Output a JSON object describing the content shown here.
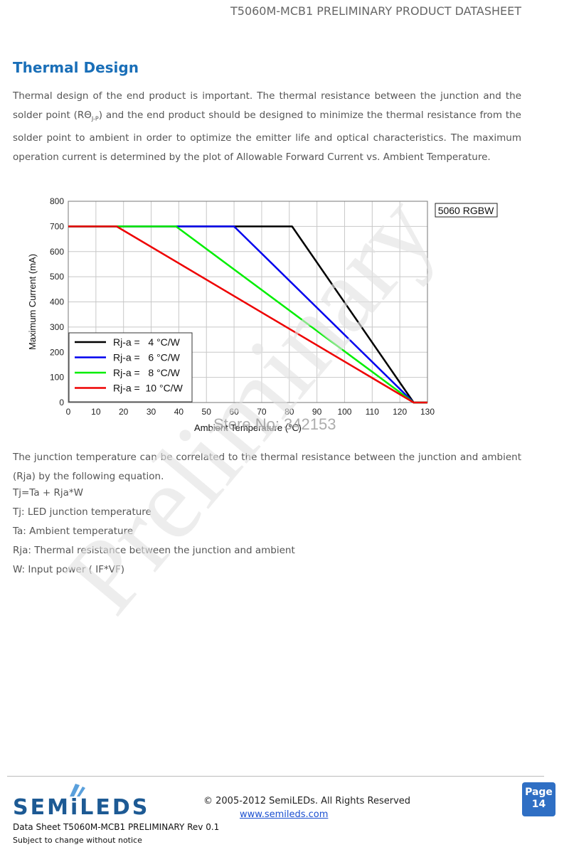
{
  "header": {
    "title": "T5060M-MCB1 PRELIMINARY PRODUCT DATASHEET"
  },
  "section": {
    "heading": "Thermal Design",
    "intro": [
      "Thermal design of the end product is important. The thermal resistance between the junction and the solder point (RΘ",
      "J-P",
      ") and the end product should be designed to minimize the thermal resistance from the solder point to ambient in order to optimize the emitter life and optical characteristics. The maximum operation current is determined by the plot of Allowable Forward Current vs. Ambient Temperature."
    ],
    "body": [
      "The junction temperature can be correlated to the thermal resistance between the junction and ambient (Rja) by the following equation.",
      "Tj=Ta + Rja*W",
      "Tj: LED junction temperature",
      "Ta: Ambient temperature",
      "Rja: Thermal resistance between the junction and ambient",
      "W: Input power ( IF*VF)"
    ]
  },
  "chart_data": {
    "type": "line",
    "label": "5060 RGBW",
    "xlabel": "Ambient Temperature (℃)",
    "ylabel": "Maximum Current (mA)",
    "xlim": [
      0,
      130
    ],
    "ylim": [
      0,
      800
    ],
    "xticks": [
      0,
      10,
      20,
      30,
      40,
      50,
      60,
      70,
      80,
      90,
      100,
      110,
      120,
      130
    ],
    "yticks": [
      0,
      100,
      200,
      300,
      400,
      500,
      600,
      700,
      800
    ],
    "grid": true,
    "legend": "lower left",
    "series": [
      {
        "name": "Rj-a =   4 °C/W",
        "color": "#000000",
        "x": [
          0,
          81,
          125,
          130
        ],
        "values": [
          700,
          700,
          0,
          0
        ]
      },
      {
        "name": "Rj-a =   6 °C/W",
        "color": "#0000ee",
        "x": [
          0,
          60,
          125,
          130
        ],
        "values": [
          700,
          700,
          0,
          0
        ]
      },
      {
        "name": "Rj-a =   8 °C/W",
        "color": "#00ee00",
        "x": [
          0,
          39,
          125,
          130
        ],
        "values": [
          700,
          700,
          0,
          0
        ]
      },
      {
        "name": "Rj-a =  10 °C/W",
        "color": "#ee0000",
        "x": [
          0,
          17.5,
          125,
          130
        ],
        "values": [
          700,
          700,
          0,
          0
        ]
      }
    ]
  },
  "watermarks": {
    "store": "Store No: 342153",
    "preliminary": "Preliminary"
  },
  "footer": {
    "logo": "SEMiLEDS",
    "copyright": "© 2005-2012 SemiLEDs. All Rights Reserved",
    "url": "www.semileds.com",
    "doc": "Data Sheet T5060M-MCB1 PRELIMINARY Rev 0.1",
    "notice": "Subject to change without notice",
    "page_label": "Page",
    "page_number": "14"
  }
}
